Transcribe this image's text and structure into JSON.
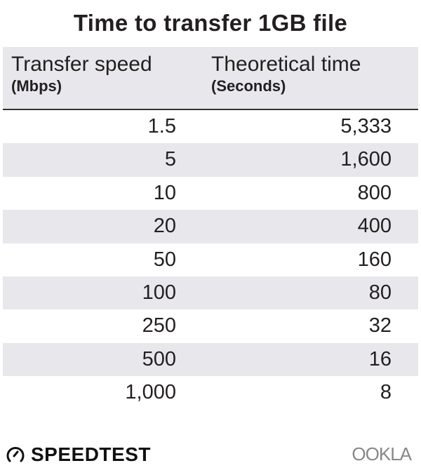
{
  "chart_data": {
    "type": "table",
    "title": "Time to transfer 1GB file",
    "columns": [
      {
        "label": "Transfer speed",
        "unit": "(Mbps)"
      },
      {
        "label": "Theoretical time",
        "unit": "(Seconds)"
      }
    ],
    "rows": [
      [
        "1.5",
        "5,333"
      ],
      [
        "5",
        "1,600"
      ],
      [
        "10",
        "800"
      ],
      [
        "20",
        "400"
      ],
      [
        "50",
        "160"
      ],
      [
        "100",
        "80"
      ],
      [
        "250",
        "32"
      ],
      [
        "500",
        "16"
      ],
      [
        "1,000",
        "8"
      ]
    ],
    "colors": {
      "header_bg": "#e8e8ec",
      "stripe_bg": "#e8e8ec",
      "text": "#231f20"
    }
  },
  "footer": {
    "brand_left": "SPEEDTEST",
    "brand_left_icon": "speedometer-icon",
    "brand_right": "OOKLA"
  }
}
